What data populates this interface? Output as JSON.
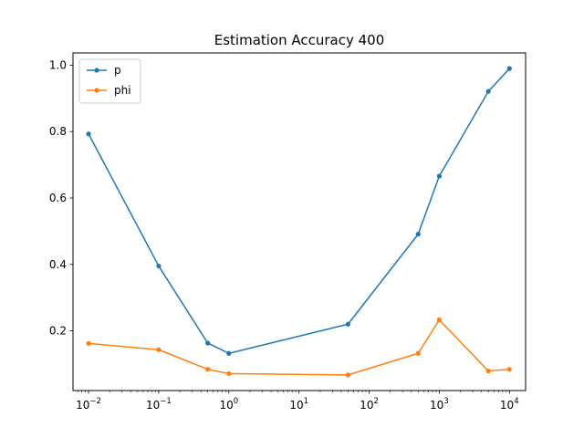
{
  "chart_data": {
    "type": "line",
    "title": "Estimation Accuracy 400",
    "xlabel": "",
    "ylabel": "",
    "x_scale": "log",
    "x": [
      0.01,
      0.1,
      0.5,
      1,
      50,
      500,
      1000,
      5000,
      10000
    ],
    "xlim": [
      0.006,
      17000
    ],
    "ylim": [
      0.02,
      1.037
    ],
    "x_ticks": [
      {
        "value": 0.01,
        "base": "10",
        "exp": "−2"
      },
      {
        "value": 0.1,
        "base": "10",
        "exp": "−1"
      },
      {
        "value": 1,
        "base": "10",
        "exp": "0"
      },
      {
        "value": 10,
        "base": "10",
        "exp": "1"
      },
      {
        "value": 100,
        "base": "10",
        "exp": "2"
      },
      {
        "value": 1000,
        "base": "10",
        "exp": "3"
      },
      {
        "value": 10000,
        "base": "10",
        "exp": "4"
      }
    ],
    "y_ticks": [
      {
        "value": 0.2,
        "label": "0.2"
      },
      {
        "value": 0.4,
        "label": "0.4"
      },
      {
        "value": 0.6,
        "label": "0.6"
      },
      {
        "value": 0.8,
        "label": "0.8"
      },
      {
        "value": 1.0,
        "label": "1.0"
      }
    ],
    "grid": false,
    "legend_position": "top-left",
    "series": [
      {
        "name": "p",
        "color": "#1f77b4",
        "values": [
          0.793,
          0.395,
          0.163,
          0.132,
          0.22,
          0.491,
          0.666,
          0.921,
          0.99
        ]
      },
      {
        "name": "phi",
        "color": "#ff7f0e",
        "values": [
          0.162,
          0.143,
          0.084,
          0.071,
          0.067,
          0.132,
          0.233,
          0.079,
          0.084
        ]
      }
    ]
  }
}
